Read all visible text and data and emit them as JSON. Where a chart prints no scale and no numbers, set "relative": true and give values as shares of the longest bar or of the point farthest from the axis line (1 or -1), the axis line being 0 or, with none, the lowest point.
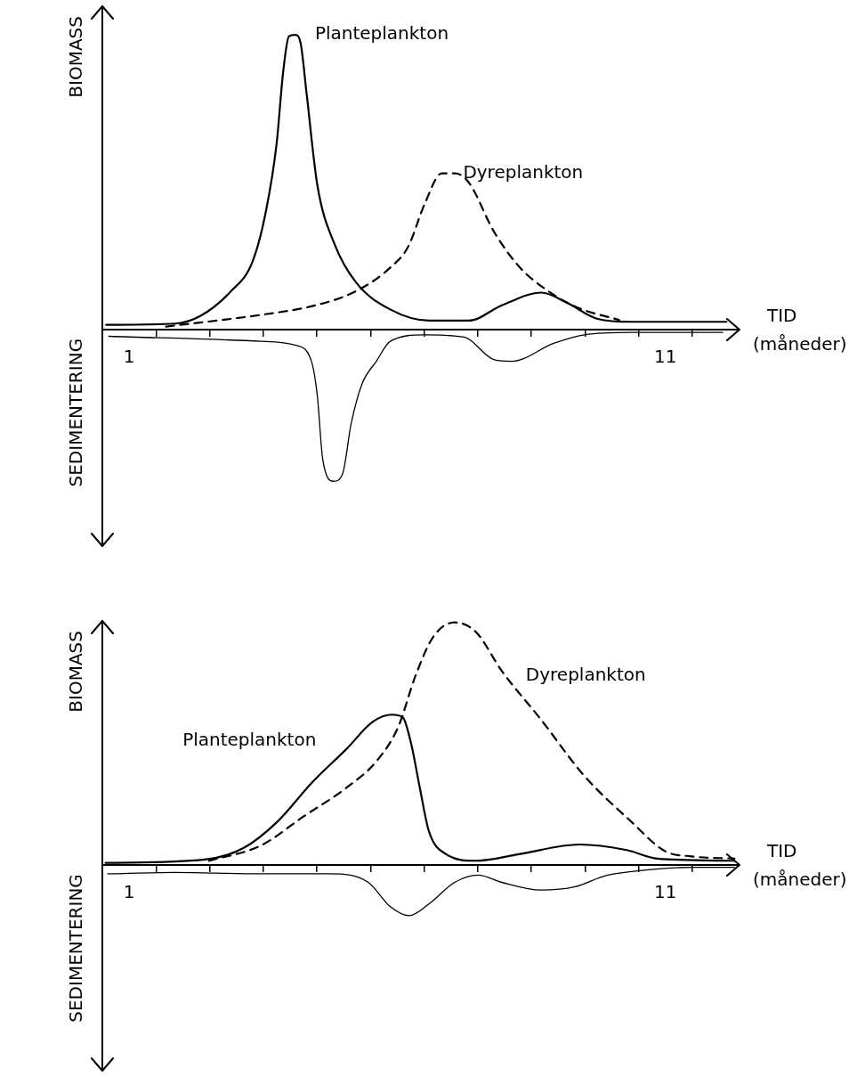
{
  "chart_data": [
    {
      "type": "line",
      "ylabel": "BIOMASS",
      "xlabel": "TID (måneder)",
      "annotations": [
        "SEDIMENTERING"
      ],
      "relative": true,
      "xlim": [
        0,
        11.9
      ],
      "xticks": [
        {
          "value": 0.5,
          "label": "1"
        },
        {
          "value": 1,
          "label": null
        },
        {
          "value": 2,
          "label": null
        },
        {
          "value": 3,
          "label": null
        },
        {
          "value": 4,
          "label": null
        },
        {
          "value": 5,
          "label": null
        },
        {
          "value": 6,
          "label": null
        },
        {
          "value": 7,
          "label": null
        },
        {
          "value": 8,
          "label": null
        },
        {
          "value": 9,
          "label": null
        },
        {
          "value": 10,
          "label": null
        },
        {
          "value": 10.5,
          "label": "11"
        },
        {
          "value": 11,
          "label": null
        }
      ],
      "series": [
        {
          "name": "Planteplankton",
          "color": "#000000",
          "line_style": "solid",
          "x": [
            0.07,
            1.36,
            1.84,
            2.4,
            2.8,
            3.05,
            3.25,
            3.37,
            3.48,
            3.6,
            3.7,
            3.81,
            4.01,
            4.33,
            4.73,
            5.37,
            6.1,
            6.83,
            7.46,
            8.19,
            8.67,
            9.24,
            9.88,
            11.64
          ],
          "values": [
            0.016,
            0.02,
            0.047,
            0.13,
            0.23,
            0.4,
            0.63,
            0.87,
            0.995,
            1,
            0.97,
            0.8,
            0.49,
            0.29,
            0.16,
            0.068,
            0.03,
            0.03,
            0.083,
            0.125,
            0.09,
            0.036,
            0.026,
            0.026
          ]
        },
        {
          "name": "Dyreplankton",
          "color": "#000000",
          "line_style": "dashed",
          "x": [
            1.19,
            2.97,
            3.93,
            4.73,
            5.37,
            5.7,
            6.02,
            6.33,
            6.58,
            6.83,
            7.31,
            7.79,
            8.28,
            8.84,
            9.64
          ],
          "values": [
            0.01,
            0.05,
            0.08,
            0.13,
            0.21,
            0.28,
            0.43,
            0.53,
            0.53,
            0.5,
            0.33,
            0.21,
            0.135,
            0.076,
            0.032
          ]
        },
        {
          "color": "#000000",
          "line_style": "solid",
          "x": [
            0.12,
            2.97,
            3.61,
            3.9,
            4.01,
            4.11,
            4.31,
            4.48,
            4.64,
            4.84,
            5.11,
            5.37,
            6.02,
            6.75,
            7.31,
            7.63,
            8.42,
            8.99,
            9.88,
            11.57
          ],
          "values": [
            -0.023,
            -0.04,
            -0.054,
            -0.108,
            -0.226,
            -0.44,
            -0.515,
            -0.49,
            -0.32,
            -0.186,
            -0.108,
            -0.04,
            -0.018,
            -0.026,
            -0.103,
            -0.108,
            -0.047,
            -0.018,
            -0.01,
            -0.01
          ]
        }
      ]
    },
    {
      "type": "line",
      "ylabel": "BIOMASS",
      "xlabel": "TID (måneder)",
      "annotations": [
        "SEDIMENTERING"
      ],
      "relative": true,
      "xlim": [
        0,
        11.9
      ],
      "xticks": [
        {
          "value": 0.5,
          "label": "1"
        },
        {
          "value": 1,
          "label": null
        },
        {
          "value": 2,
          "label": null
        },
        {
          "value": 3,
          "label": null
        },
        {
          "value": 4,
          "label": null
        },
        {
          "value": 5,
          "label": null
        },
        {
          "value": 6,
          "label": null
        },
        {
          "value": 7,
          "label": null
        },
        {
          "value": 8,
          "label": null
        },
        {
          "value": 9,
          "label": null
        },
        {
          "value": 10,
          "label": null
        },
        {
          "value": 10.5,
          "label": "11"
        },
        {
          "value": 11,
          "label": null
        }
      ],
      "series": [
        {
          "name": "Planteplankton",
          "color": "#000000",
          "line_style": "solid",
          "x": [
            0.06,
            1.91,
            2.63,
            3.27,
            3.91,
            4.56,
            5.04,
            5.4,
            5.6,
            5.76,
            5.92,
            6.09,
            6.41,
            6.97,
            7.77,
            8.9,
            9.78,
            10.35,
            11.79
          ],
          "values": [
            0.009,
            0.023,
            0.07,
            0.18,
            0.34,
            0.48,
            0.59,
            0.62,
            0.61,
            0.5,
            0.32,
            0.14,
            0.045,
            0.018,
            0.045,
            0.085,
            0.062,
            0.027,
            0.018
          ]
        },
        {
          "name": "Dyreplankton",
          "color": "#000000",
          "line_style": "dashed",
          "x": [
            1.99,
            2.95,
            3.75,
            4.56,
            5.12,
            5.52,
            5.84,
            6.17,
            6.57,
            6.97,
            7.45,
            8.18,
            8.98,
            9.86,
            10.5,
            10.99,
            11.79
          ],
          "values": [
            0.018,
            0.08,
            0.2,
            0.32,
            0.43,
            0.57,
            0.78,
            0.94,
            1,
            0.96,
            0.8,
            0.6,
            0.37,
            0.18,
            0.057,
            0.036,
            0.027
          ]
        },
        {
          "color": "#000000",
          "line_style": "solid",
          "x": [
            0.1,
            1.34,
            2.95,
            4.24,
            4.96,
            5.36,
            5.72,
            6.09,
            6.57,
            7.01,
            7.45,
            8.18,
            8.82,
            9.38,
            10.02,
            11,
            11.79
          ],
          "values": [
            -0.036,
            -0.03,
            -0.036,
            -0.036,
            -0.071,
            -0.169,
            -0.208,
            -0.16,
            -0.071,
            -0.041,
            -0.071,
            -0.103,
            -0.089,
            -0.044,
            -0.023,
            -0.009,
            -0.009
          ]
        }
      ]
    }
  ]
}
